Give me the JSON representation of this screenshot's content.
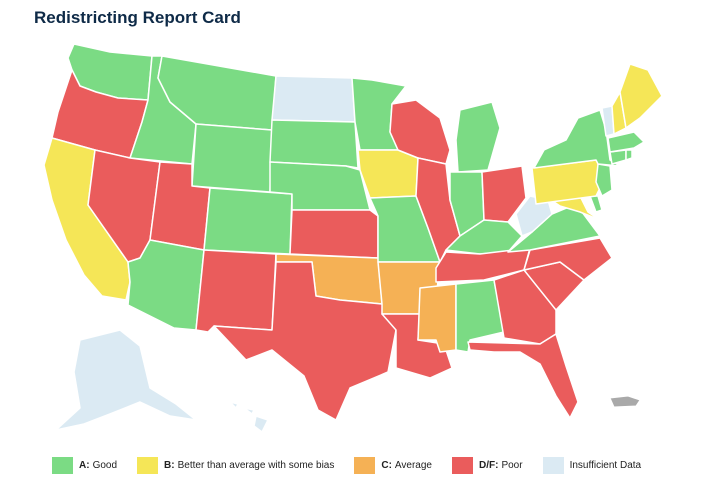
{
  "title": "Redistricting Report Card",
  "colors": {
    "good": "#7bdb84",
    "better": "#f5e657",
    "average": "#f5b155",
    "poor": "#ea5c5c",
    "insufficient": "#dbeaf3"
  },
  "legend": [
    {
      "grade": "A:",
      "desc": "Good",
      "color_key": "good"
    },
    {
      "grade": "B:",
      "desc": "Better than average with some bias",
      "color_key": "better"
    },
    {
      "grade": "C:",
      "desc": "Average",
      "color_key": "average"
    },
    {
      "grade": "D/F:",
      "desc": "Poor",
      "color_key": "poor"
    },
    {
      "grade": "",
      "desc": "Insufficient Data",
      "color_key": "insufficient"
    }
  ],
  "states": [
    {
      "name": "WA",
      "grade": "good"
    },
    {
      "name": "OR",
      "grade": "poor"
    },
    {
      "name": "CA",
      "grade": "better"
    },
    {
      "name": "ID",
      "grade": "good"
    },
    {
      "name": "NV",
      "grade": "poor"
    },
    {
      "name": "MT",
      "grade": "good"
    },
    {
      "name": "WY",
      "grade": "good"
    },
    {
      "name": "UT",
      "grade": "poor"
    },
    {
      "name": "AZ",
      "grade": "good"
    },
    {
      "name": "CO",
      "grade": "good"
    },
    {
      "name": "NM",
      "grade": "poor"
    },
    {
      "name": "ND",
      "grade": "insufficient"
    },
    {
      "name": "SD",
      "grade": "good"
    },
    {
      "name": "NE",
      "grade": "good"
    },
    {
      "name": "KS",
      "grade": "poor"
    },
    {
      "name": "OK",
      "grade": "average"
    },
    {
      "name": "TX",
      "grade": "poor"
    },
    {
      "name": "MN",
      "grade": "good"
    },
    {
      "name": "IA",
      "grade": "better"
    },
    {
      "name": "MO",
      "grade": "good"
    },
    {
      "name": "AR",
      "grade": "average"
    },
    {
      "name": "LA",
      "grade": "poor"
    },
    {
      "name": "WI",
      "grade": "poor"
    },
    {
      "name": "IL",
      "grade": "poor"
    },
    {
      "name": "MI",
      "grade": "good"
    },
    {
      "name": "IN",
      "grade": "good"
    },
    {
      "name": "OH",
      "grade": "poor"
    },
    {
      "name": "KY",
      "grade": "good"
    },
    {
      "name": "TN",
      "grade": "poor"
    },
    {
      "name": "MS",
      "grade": "average"
    },
    {
      "name": "AL",
      "grade": "good"
    },
    {
      "name": "GA",
      "grade": "poor"
    },
    {
      "name": "FL",
      "grade": "poor"
    },
    {
      "name": "SC",
      "grade": "poor"
    },
    {
      "name": "NC",
      "grade": "poor"
    },
    {
      "name": "VA",
      "grade": "good"
    },
    {
      "name": "WV",
      "grade": "insufficient"
    },
    {
      "name": "MD",
      "grade": "better"
    },
    {
      "name": "DE",
      "grade": "good"
    },
    {
      "name": "PA",
      "grade": "better"
    },
    {
      "name": "NJ",
      "grade": "good"
    },
    {
      "name": "NY",
      "grade": "good"
    },
    {
      "name": "CT",
      "grade": "good"
    },
    {
      "name": "RI",
      "grade": "good"
    },
    {
      "name": "MA",
      "grade": "good"
    },
    {
      "name": "VT",
      "grade": "insufficient"
    },
    {
      "name": "NH",
      "grade": "better"
    },
    {
      "name": "ME",
      "grade": "better"
    },
    {
      "name": "AK",
      "grade": "insufficient"
    },
    {
      "name": "HI",
      "grade": "insufficient"
    }
  ]
}
